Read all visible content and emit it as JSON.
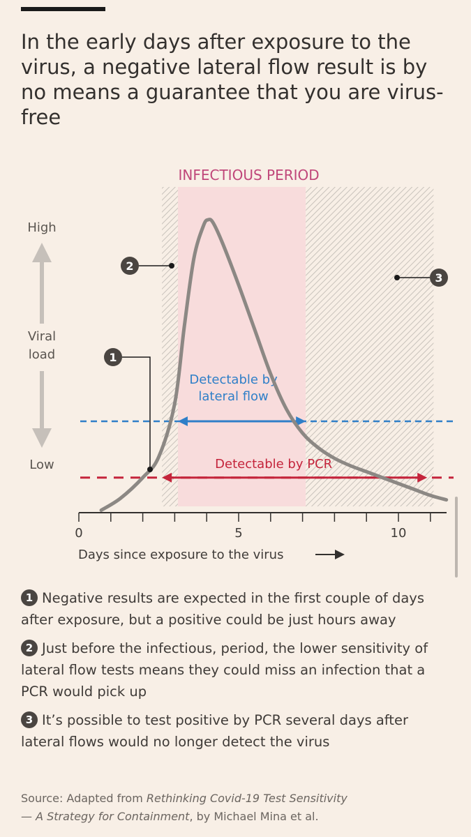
{
  "headline": "In the early days after exposure to the virus, a negative lateral flow result is by no means a guarantee that you are virus-free",
  "colors": {
    "background": "#f8efe6",
    "infectious_fill": "#f8dcdc",
    "infectious_label": "#c0477a",
    "curve": "#8c8884",
    "lateral_flow": "#2f7fc8",
    "pcr": "#c4243b",
    "axis": "#33302e",
    "markers": "#4a4541"
  },
  "chart_data": {
    "type": "line",
    "title": "",
    "xlabel": "Days since exposure to the virus",
    "ylabel": "Viral load",
    "y_high_label": "High",
    "y_low_label": "Low",
    "xlim": [
      0,
      11.5
    ],
    "ylim": [
      0,
      1
    ],
    "xticks": [
      0,
      1,
      2,
      3,
      4,
      5,
      6,
      7,
      8,
      9,
      10,
      11
    ],
    "xtick_labels": [
      {
        "x": 0,
        "label": "0"
      },
      {
        "x": 5,
        "label": "5"
      },
      {
        "x": 10,
        "label": "10"
      }
    ],
    "series": [
      {
        "name": "Viral load",
        "x": [
          0.7,
          1.3,
          2.0,
          2.5,
          3.0,
          3.3,
          3.6,
          3.9,
          4.05,
          4.2,
          4.5,
          5.0,
          5.5,
          6.0,
          6.5,
          7.0,
          7.5,
          8.0,
          8.5,
          9.0,
          9.5,
          10.0,
          10.5,
          11.0,
          11.5
        ],
        "y": [
          0.02,
          0.06,
          0.13,
          0.2,
          0.38,
          0.64,
          0.87,
          0.98,
          1.0,
          0.99,
          0.92,
          0.78,
          0.63,
          0.48,
          0.36,
          0.28,
          0.23,
          0.195,
          0.17,
          0.15,
          0.13,
          0.11,
          0.09,
          0.07,
          0.055
        ]
      }
    ],
    "shaded_regions": [
      {
        "name": "Pre-infectious window",
        "x0": 2.6,
        "x1": 3.1,
        "style": "hatched"
      },
      {
        "name": "Infectious period",
        "x0": 3.1,
        "x1": 7.1,
        "style": "pink",
        "label": "INFECTIOUS PERIOD"
      },
      {
        "name": "Post-infectious window",
        "x0": 7.1,
        "x1": 11.1,
        "style": "hatched"
      }
    ],
    "thresholds": [
      {
        "name": "Detectable by lateral flow",
        "y": 0.32,
        "label_lines": [
          "Detectable by",
          "lateral flow"
        ],
        "range": [
          3.1,
          7.1
        ],
        "color": "lateral_flow"
      },
      {
        "name": "Detectable by PCR",
        "y": 0.13,
        "label": "Detectable by PCR",
        "range": [
          2.6,
          10.9
        ],
        "color": "pcr"
      }
    ],
    "markers": [
      {
        "id": "1",
        "label": "1"
      },
      {
        "id": "2",
        "label": "2"
      },
      {
        "id": "3",
        "label": "3"
      }
    ]
  },
  "notes": [
    {
      "num": "1",
      "text": "Negative results are expected in the first couple of days after exposure, but a positive could be just hours away"
    },
    {
      "num": "2",
      "text": "Just before the infectious, period, the lower sensitivity of lateral flow tests means they could miss an infection that a PCR would pick up"
    },
    {
      "num": "3",
      "text": "It’s possible to test positive by PCR several days after lateral flows would no longer detect the virus"
    }
  ],
  "source": {
    "prefix": "Source: Adapted from ",
    "title_line1": "Rethinking Covid-19 Test Sensitivity",
    "title_line2": "— A Strategy for Containment",
    "suffix": ", by Michael Mina et al."
  }
}
